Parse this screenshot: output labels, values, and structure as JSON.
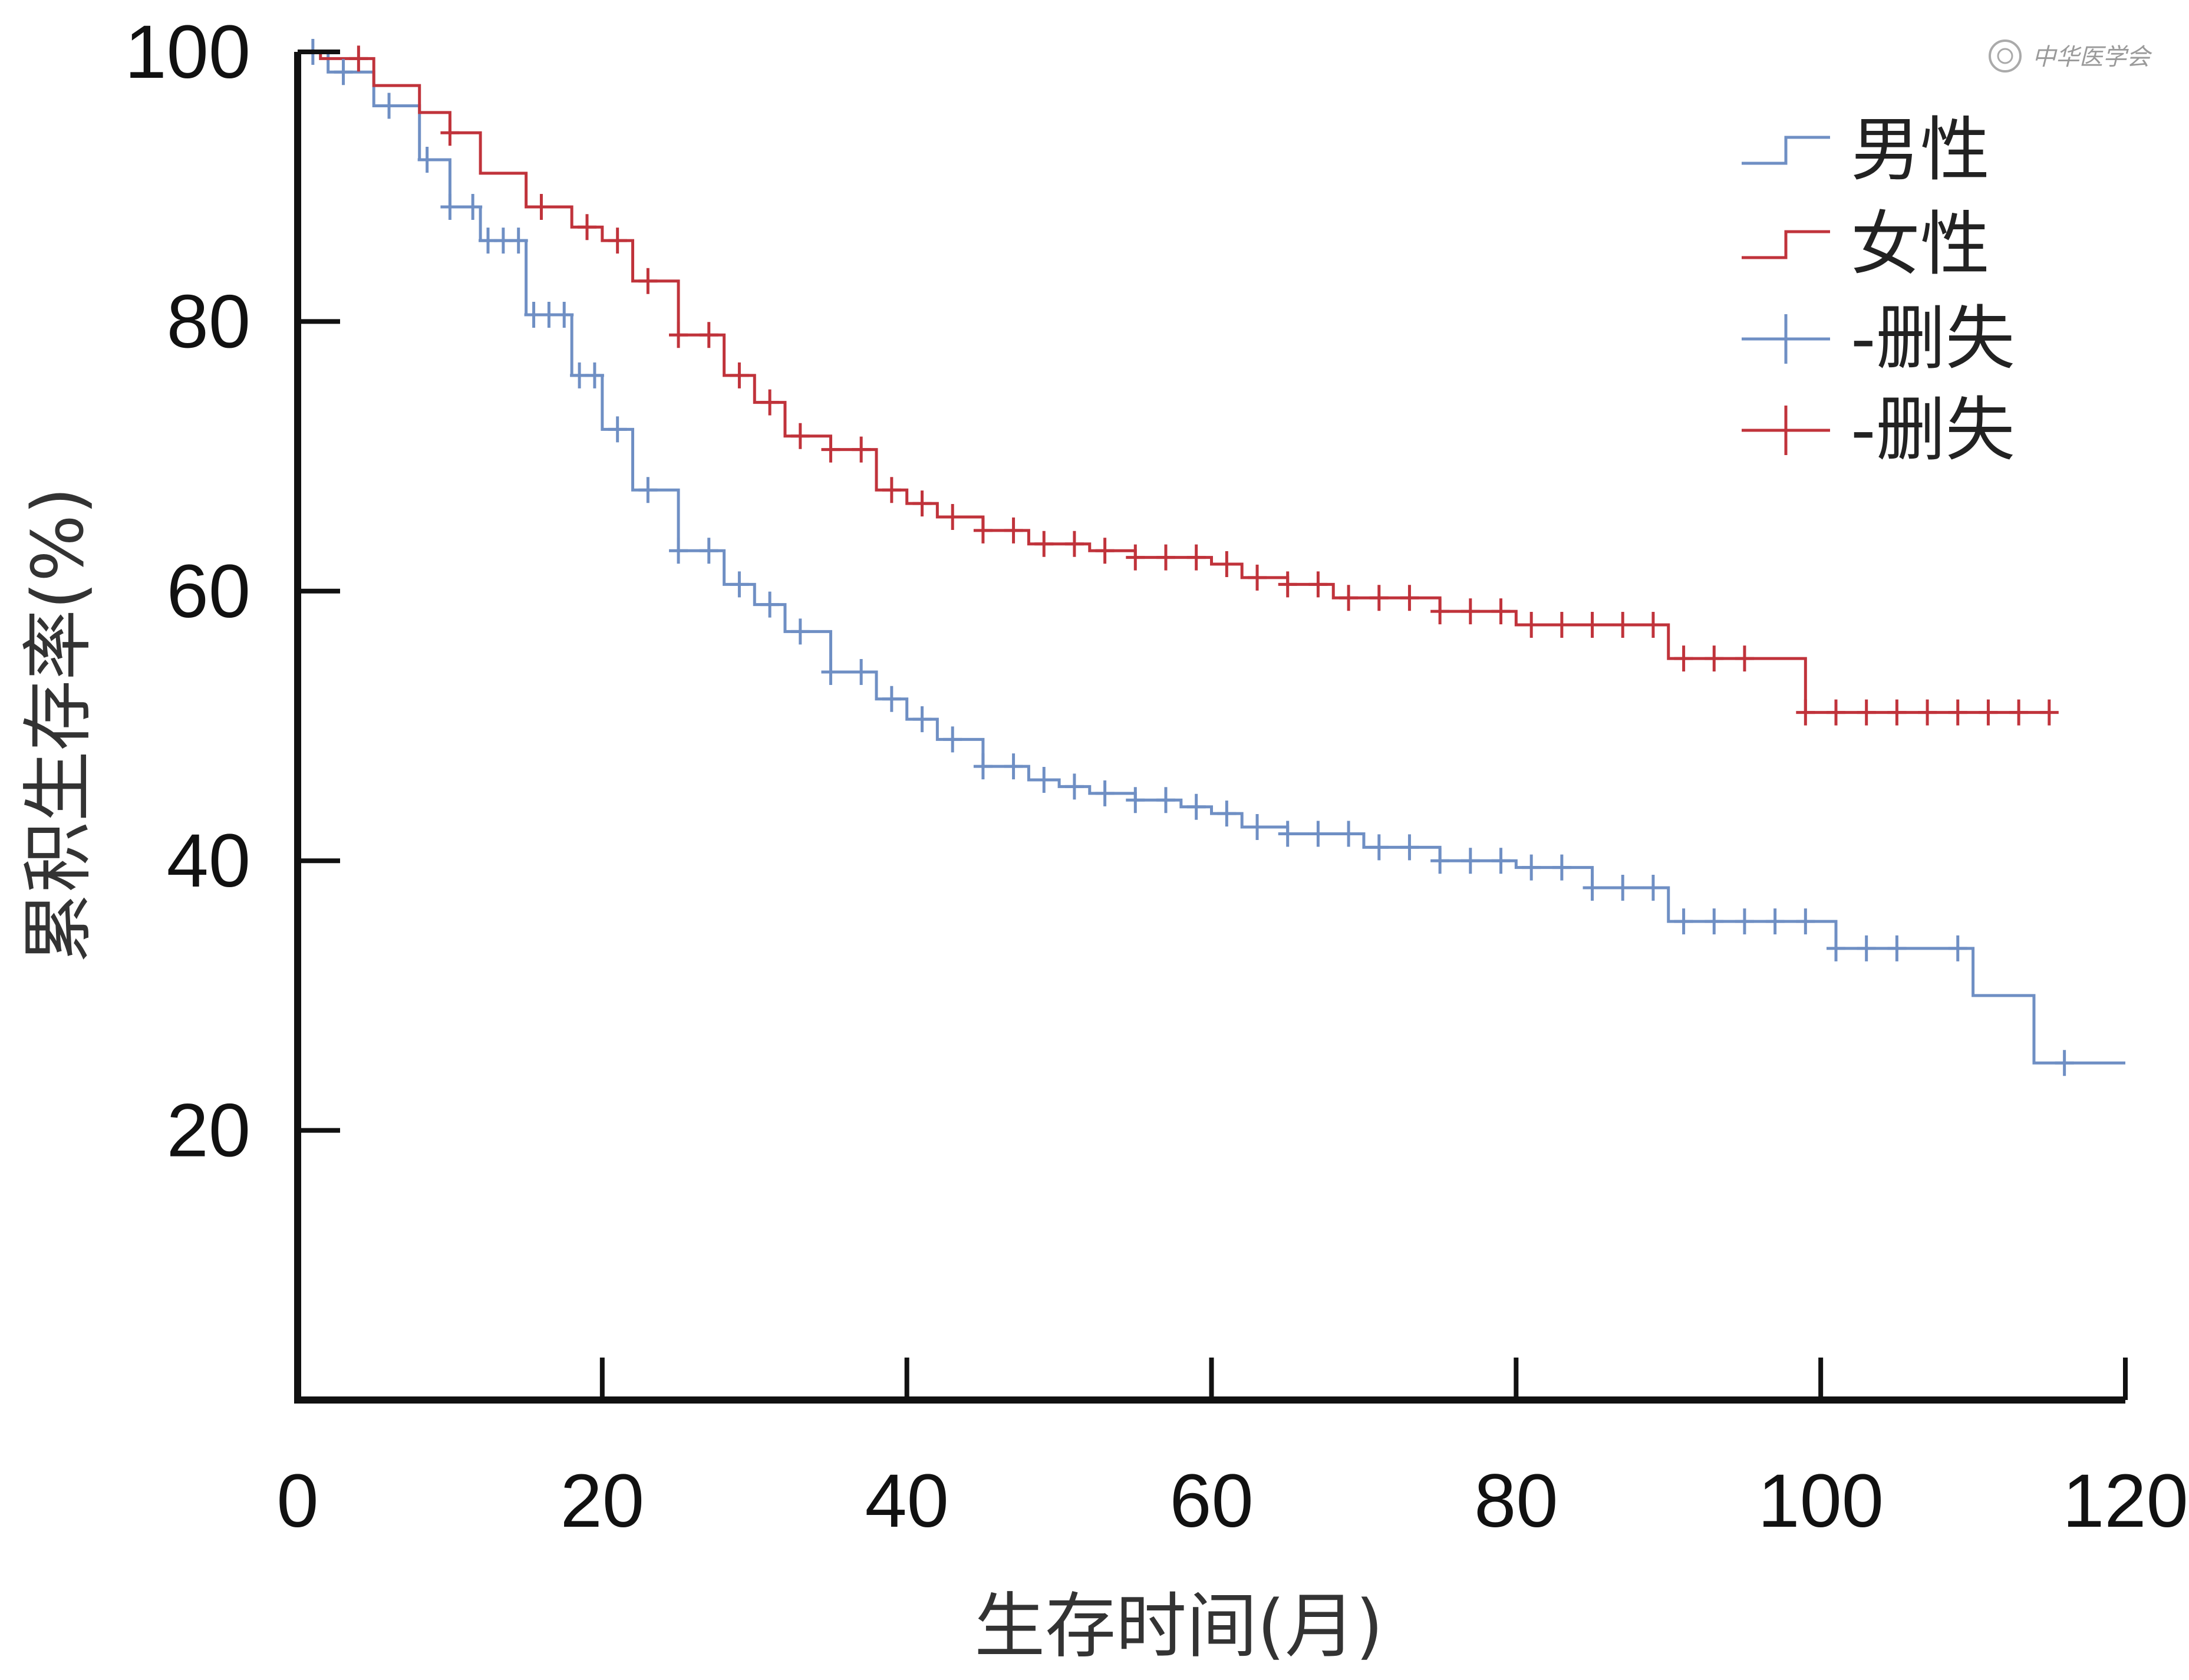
{
  "chart_data": {
    "type": "line",
    "subtype": "kaplan-meier step",
    "title": "",
    "xlabel": "生存时间(月)",
    "ylabel": "累积生存率(%)",
    "xlim": [
      0,
      120
    ],
    "ylim": [
      0,
      100
    ],
    "x_ticks": [
      "0",
      "20",
      "40",
      "60",
      "80",
      "100",
      "120"
    ],
    "y_ticks": [
      "20",
      "40",
      "60",
      "80",
      "100"
    ],
    "grid": false,
    "legend_position": "top-right",
    "legend": [
      {
        "label": "男性",
        "kind": "line",
        "color": "#6f8fc4"
      },
      {
        "label": "女性",
        "kind": "line",
        "color": "#c0333b"
      },
      {
        "label": "-删失",
        "kind": "censor",
        "color": "#6f8fc4"
      },
      {
        "label": "-删失",
        "kind": "censor",
        "color": "#c0333b"
      }
    ],
    "series": [
      {
        "name": "男性",
        "color": "#6f8fc4",
        "x": [
          0,
          2,
          5,
          8,
          10,
          12,
          15,
          18,
          20,
          22,
          25,
          28,
          30,
          32,
          35,
          38,
          40,
          42,
          45,
          48,
          50,
          52,
          55,
          58,
          60,
          62,
          65,
          70,
          75,
          80,
          85,
          90,
          100,
          101,
          110,
          114,
          120
        ],
        "y": [
          100,
          98.5,
          96,
          92,
          88.5,
          86,
          80.5,
          76,
          72,
          67.5,
          63,
          60.5,
          59,
          57,
          54,
          52,
          50.5,
          49,
          47,
          46,
          45.5,
          45,
          44.5,
          44,
          43.5,
          42.5,
          42,
          41,
          40,
          39.5,
          38,
          35.5,
          35.5,
          33.5,
          30,
          25,
          25
        ]
      },
      {
        "name": "女性",
        "color": "#c0333b",
        "x": [
          0,
          1.5,
          5,
          8,
          10,
          12,
          15,
          18,
          20,
          22,
          25,
          28,
          30,
          32,
          35,
          38,
          40,
          42,
          45,
          48,
          50,
          52,
          55,
          58,
          60,
          62,
          65,
          68,
          70,
          75,
          80,
          90,
          99,
          115
        ],
        "y": [
          100,
          99.5,
          97.5,
          95.5,
          94,
          91,
          88.5,
          87,
          86,
          83,
          79,
          76,
          74,
          71.5,
          70.5,
          67.5,
          66.5,
          65.5,
          64.5,
          63.5,
          63.5,
          63,
          62.5,
          62.5,
          62,
          61,
          60.5,
          59.5,
          59.5,
          58.5,
          57.5,
          55,
          51,
          51
        ]
      }
    ],
    "censor_marks": [
      {
        "series": "男性",
        "x": [
          1,
          3,
          6,
          8.5,
          10,
          11.5,
          12.5,
          13.5,
          14.5,
          15.5,
          16.5,
          17.5,
          18.5,
          19.5,
          21,
          23,
          25,
          27,
          29,
          31,
          33,
          35,
          37,
          39,
          41,
          43,
          45,
          47,
          49,
          51,
          53,
          55,
          57,
          59,
          61,
          63,
          65,
          67,
          69,
          71,
          73,
          75,
          77,
          79,
          81,
          83,
          85,
          87,
          89,
          91,
          93,
          95,
          97,
          99,
          101,
          103,
          105,
          109,
          116
        ]
      },
      {
        "series": "女性",
        "x": [
          4,
          10,
          16,
          19,
          21,
          23,
          25,
          27,
          29,
          31,
          33,
          35,
          37,
          39,
          41,
          43,
          45,
          47,
          49,
          51,
          53,
          55,
          57,
          59,
          61,
          63,
          65,
          67,
          69,
          71,
          73,
          75,
          77,
          79,
          81,
          83,
          85,
          87,
          89,
          91,
          93,
          95,
          99,
          101,
          103,
          105,
          107,
          109,
          111,
          113,
          115
        ]
      }
    ]
  },
  "watermark": {
    "text": "中华医学会",
    "icon": "society-seal-icon"
  }
}
